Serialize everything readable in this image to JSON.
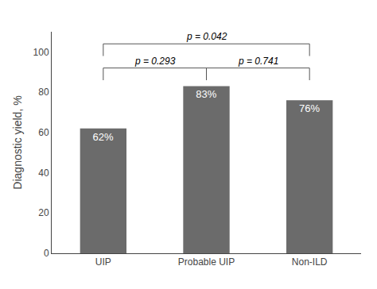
{
  "chart_data": {
    "type": "bar",
    "categories": [
      "UIP",
      "Probable UIP",
      "Non-ILD"
    ],
    "values": [
      62,
      83,
      76
    ],
    "value_labels": [
      "62%",
      "83%",
      "76%"
    ],
    "data_labels": true,
    "color": "#6b6b6b",
    "y_label": "Diagnostic yield, %",
    "ylim": [
      0,
      110
    ],
    "yticks": [
      0,
      20,
      40,
      60,
      80,
      100
    ],
    "grid": false,
    "annotations": [
      {
        "text": "p = 0.293",
        "from": "UIP",
        "to": "Probable UIP",
        "y": 92
      },
      {
        "text": "p = 0.042",
        "from": "UIP",
        "to": "Non-ILD",
        "y": 104
      },
      {
        "text": "p = 0.741",
        "from": "Probable UIP",
        "to": "Non-ILD",
        "y": 92
      }
    ]
  }
}
